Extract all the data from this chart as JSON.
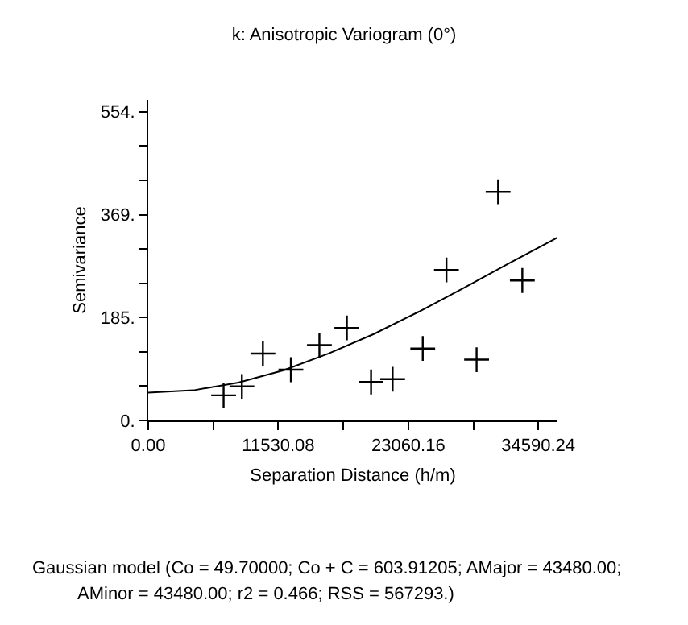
{
  "chart_data": {
    "type": "scatter",
    "title": "k: Anisotropic Variogram (0°)",
    "xlabel": "Separation Distance (h/m)",
    "ylabel": "Semivariance",
    "xlim": [
      0,
      36290
    ],
    "ylim": [
      0,
      575
    ],
    "xticks": [
      {
        "value": 0,
        "label": "0.00"
      },
      {
        "value": 5765.04,
        "label": null
      },
      {
        "value": 11530.08,
        "label": "11530.08"
      },
      {
        "value": 17295.12,
        "label": null
      },
      {
        "value": 23060.16,
        "label": "23060.16"
      },
      {
        "value": 28825.2,
        "label": null
      },
      {
        "value": 34590.24,
        "label": "34590.24"
      }
    ],
    "yticks": [
      {
        "value": 0,
        "label": "0."
      },
      {
        "value": 61.6,
        "label": null
      },
      {
        "value": 123.2,
        "label": null
      },
      {
        "value": 185,
        "label": "185."
      },
      {
        "value": 246.3,
        "label": null
      },
      {
        "value": 307.7,
        "label": null
      },
      {
        "value": 369,
        "label": "369."
      },
      {
        "value": 430.7,
        "label": null
      },
      {
        "value": 492.3,
        "label": null
      },
      {
        "value": 554,
        "label": "554."
      }
    ],
    "series": [
      {
        "marker": "cross",
        "color": "#000000",
        "x": [
          6682,
          8305,
          10167,
          12648,
          15178,
          17612,
          19760,
          21670,
          24343,
          26443,
          29116,
          31025,
          33173
        ],
        "values": [
          45,
          61,
          120,
          91,
          135,
          166,
          69,
          74,
          129,
          270,
          109,
          410,
          251
        ]
      },
      {
        "type": "line",
        "marker": "none",
        "color": "#000000",
        "x": [
          0,
          4000,
          8000,
          12000,
          16000,
          20000,
          24000,
          28000,
          32000,
          36000,
          36290
        ],
        "values": [
          50,
          54,
          68,
          90,
          120,
          155,
          195,
          238,
          282,
          325,
          328
        ]
      }
    ],
    "annotations": [
      "Gaussian model (Co = 49.70000; Co + C = 603.91205; AMajor = 43480.00;",
      "AMinor = 43480.00; r2 = 0.466; RSS = 567293.)"
    ]
  }
}
